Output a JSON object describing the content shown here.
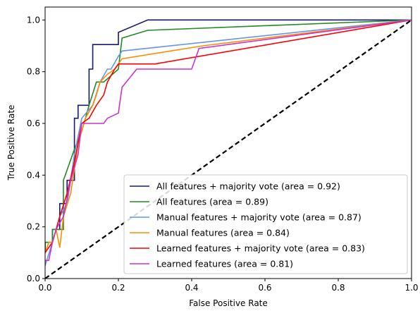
{
  "chart_data": {
    "type": "line",
    "xlabel": "False Positive Rate",
    "ylabel": "True Positive Rate",
    "xlim": [
      0.0,
      1.0
    ],
    "ylim": [
      0.0,
      1.05
    ],
    "xticks": [
      "0.0",
      "0.2",
      "0.4",
      "0.6",
      "0.8",
      "1.0"
    ],
    "yticks": [
      "0.0",
      "0.2",
      "0.4",
      "0.6",
      "0.8",
      "1.0"
    ],
    "grid": false,
    "legend_position": "lower-right",
    "series": [
      {
        "name": "All features + majority vote (area = 0.92)",
        "color": "#191970",
        "x": [
          0.0,
          0.0,
          0.02,
          0.02,
          0.04,
          0.04,
          0.06,
          0.06,
          0.08,
          0.08,
          0.09,
          0.09,
          0.12,
          0.12,
          0.13,
          0.13,
          0.2,
          0.2,
          0.28,
          1.0
        ],
        "y": [
          0.1,
          0.14,
          0.14,
          0.19,
          0.19,
          0.29,
          0.29,
          0.38,
          0.38,
          0.62,
          0.62,
          0.67,
          0.67,
          0.81,
          0.81,
          0.905,
          0.905,
          0.952,
          1.0,
          1.0
        ]
      },
      {
        "name": "All features (area = 0.89)",
        "color": "#228b22",
        "x": [
          0.0,
          0.0,
          0.02,
          0.02,
          0.05,
          0.05,
          0.08,
          0.1,
          0.12,
          0.14,
          0.16,
          0.2,
          0.21,
          0.28,
          1.0
        ],
        "y": [
          0.1,
          0.14,
          0.14,
          0.19,
          0.19,
          0.38,
          0.5,
          0.57,
          0.67,
          0.76,
          0.76,
          0.81,
          0.93,
          0.96,
          1.0
        ]
      },
      {
        "name": "Manual features + majority vote (area = 0.87)",
        "color": "#6495ed",
        "x": [
          0.0,
          0.02,
          0.04,
          0.06,
          0.08,
          0.1,
          0.13,
          0.15,
          0.17,
          0.18,
          0.2,
          0.21,
          1.0
        ],
        "y": [
          0.05,
          0.14,
          0.24,
          0.29,
          0.48,
          0.62,
          0.67,
          0.76,
          0.81,
          0.81,
          0.86,
          0.88,
          1.0
        ]
      },
      {
        "name": "Manual features (area = 0.84)",
        "color": "#ff8c00",
        "x": [
          0.0,
          0.01,
          0.02,
          0.03,
          0.04,
          0.05,
          0.07,
          0.09,
          0.11,
          0.13,
          0.14,
          0.15,
          0.17,
          0.19,
          0.2,
          0.21,
          0.43,
          1.0
        ],
        "y": [
          0.1,
          0.14,
          0.14,
          0.19,
          0.12,
          0.24,
          0.33,
          0.52,
          0.62,
          0.67,
          0.71,
          0.76,
          0.79,
          0.81,
          0.83,
          0.85,
          0.9,
          1.0
        ]
      },
      {
        "name": "Learned features + majority vote (area = 0.83)",
        "color": "#ff0000",
        "x": [
          0.0,
          0.02,
          0.04,
          0.06,
          0.08,
          0.1,
          0.12,
          0.14,
          0.16,
          0.17,
          0.19,
          0.2,
          0.3,
          1.0
        ],
        "y": [
          0.1,
          0.14,
          0.24,
          0.33,
          0.45,
          0.6,
          0.62,
          0.67,
          0.71,
          0.76,
          0.81,
          0.83,
          0.83,
          1.0
        ]
      },
      {
        "name": "Learned features (area = 0.81)",
        "color": "#cc33cc",
        "x": [
          0.0,
          0.0,
          0.01,
          0.02,
          0.03,
          0.05,
          0.07,
          0.09,
          0.1,
          0.16,
          0.17,
          0.2,
          0.21,
          0.25,
          0.3,
          0.4,
          0.42,
          1.0
        ],
        "y": [
          0.05,
          0.07,
          0.07,
          0.14,
          0.19,
          0.24,
          0.38,
          0.48,
          0.6,
          0.6,
          0.62,
          0.64,
          0.74,
          0.81,
          0.81,
          0.81,
          0.89,
          1.0
        ]
      }
    ],
    "reference_line": {
      "color": "#000000",
      "style": "dashed",
      "x": [
        0.0,
        1.0
      ],
      "y": [
        0.0,
        1.0
      ]
    }
  }
}
